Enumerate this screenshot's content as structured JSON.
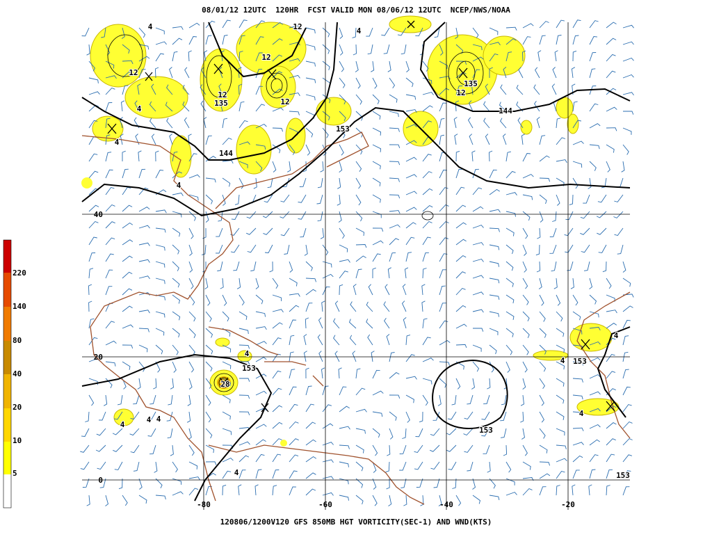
{
  "header": {
    "title": "08/01/12 12UTC  120HR  FCST VALID MON 08/06/12 12UTC  NCEP/NWS/NOAA"
  },
  "footer": {
    "caption": "120806/1200V120 GFS 850MB HGT VORTICITY(SEC-1) AND WND(KTS)"
  },
  "colorbar": {
    "labels": [
      "5",
      "10",
      "20",
      "40",
      "80",
      "140",
      "220"
    ]
  },
  "map": {
    "lat_labels": [
      "40",
      "20",
      "0"
    ],
    "lon_labels": [
      "-80",
      "-60",
      "-40",
      "-20"
    ],
    "contour_labels": [
      "12",
      "12",
      "12",
      "12",
      "135",
      "12",
      "135",
      "4",
      "4",
      "144",
      "153",
      "144",
      "4",
      "4",
      "4",
      "153",
      "153",
      "153",
      "28",
      "4",
      "4",
      "4",
      "4",
      "4",
      "153",
      "4",
      "4",
      "4",
      "12"
    ]
  }
}
